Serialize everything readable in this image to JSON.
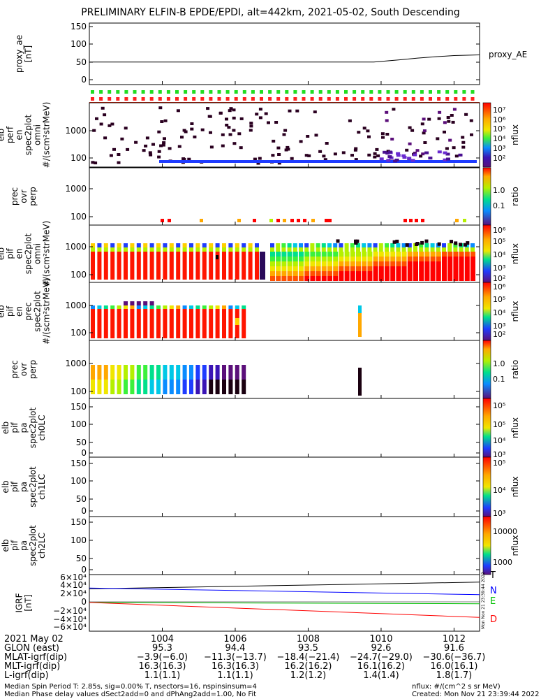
{
  "title": "PRELIMINARY ELFIN-B EPDE/EPDI, alt=442km, 2021-05-02, South Descending",
  "chart_data": [
    {
      "type": "line",
      "id": "proxy_ae",
      "ylabel": [
        "proxy_ae",
        "[nT]"
      ],
      "ylim": [
        0,
        150
      ],
      "yticks": [
        "150",
        "100",
        "50",
        "0"
      ],
      "series": [
        {
          "name": "proxy_AE",
          "x": [
            1002,
            1003,
            1004,
            1005,
            1006,
            1007,
            1008,
            1009,
            1009.8,
            1010.5,
            1011,
            1011.5,
            1012,
            1012.7
          ],
          "y": [
            50,
            50,
            50,
            50,
            50,
            50,
            50,
            50,
            50,
            56,
            61,
            65,
            68,
            70
          ]
        }
      ]
    },
    {
      "type": "heatmap",
      "id": "perp",
      "ylabel": [
        "elb",
        "perf",
        "en",
        "spec2plot",
        "omni",
        "#/(scm²strMeV)"
      ],
      "yticks": [
        "1000",
        "100"
      ],
      "zlabel": "nflux",
      "zticks": [
        "10⁷",
        "10⁶",
        "10⁵",
        "10⁴",
        "10³",
        "10²"
      ]
    },
    {
      "type": "heatmap",
      "id": "prec_ovr_perp_1",
      "ylabel": [
        "prec",
        "ovr",
        "perp"
      ],
      "yticks": [
        "1000",
        "100"
      ],
      "zlabel": "ratio",
      "zticks": [
        "1.0",
        "0.1"
      ]
    },
    {
      "type": "heatmap",
      "id": "pif_omni",
      "ylabel": [
        "elb",
        "pif",
        "en",
        "spec2plot",
        "omni",
        "#/(scm²strMeV)"
      ],
      "yticks": [
        "1000",
        "100"
      ],
      "zlabel": "nflux",
      "zticks": [
        "10⁶",
        "10⁵",
        "10⁴",
        "10³",
        "10²"
      ]
    },
    {
      "type": "heatmap",
      "id": "pif_prec",
      "ylabel": [
        "elb",
        "pif",
        "en",
        "prec",
        "spec2plot",
        "#/(scm²strMeV)"
      ],
      "yticks": [
        "1000",
        "100"
      ],
      "zlabel": "nflux",
      "zticks": [
        "10⁶",
        "10⁵",
        "10⁴",
        "10³",
        "10²"
      ]
    },
    {
      "type": "heatmap",
      "id": "prec_ovr_perp_2",
      "ylabel": [
        "prec",
        "ovr",
        "perp"
      ],
      "yticks": [
        "1000",
        "100"
      ],
      "zlabel": "ratio",
      "zticks": [
        "1.0",
        "0.1"
      ]
    },
    {
      "type": "heatmap",
      "id": "pa_ch0",
      "ylabel": [
        "elb",
        "pif",
        "pa",
        "spec2plot",
        "ch0LC"
      ],
      "yticks": [
        "150",
        "100",
        "50",
        "0"
      ],
      "zlabel": "nflux",
      "zticks": [
        "10⁵",
        "10⁵",
        "10⁴",
        "10³"
      ]
    },
    {
      "type": "heatmap",
      "id": "pa_ch1",
      "ylabel": [
        "elb",
        "pif",
        "pa",
        "spec2plot",
        "ch1LC"
      ],
      "yticks": [
        "150",
        "100",
        "50",
        "0"
      ],
      "zlabel": "nflux",
      "zticks": [
        "10⁵",
        "10⁴",
        "10³"
      ]
    },
    {
      "type": "heatmap",
      "id": "pa_ch2",
      "ylabel": [
        "elb",
        "pif",
        "pa",
        "spec2plot",
        "ch2LC"
      ],
      "yticks": [
        "150",
        "100",
        "50",
        "0"
      ],
      "zlabel": "nflux",
      "zticks": [
        "10000",
        "1000"
      ]
    },
    {
      "type": "line",
      "id": "igrf",
      "ylabel": [
        "IGRF",
        "[nT]"
      ],
      "ylim": [
        -60000,
        60000
      ],
      "yticks": [
        "6×10⁴",
        "4×10⁴",
        "2×10⁴",
        "0",
        "−2×10⁴",
        "−4×10⁴",
        "−6×10⁴"
      ],
      "series": [
        {
          "name": "T",
          "color": "#000000",
          "x": [
            1002,
            1012.7
          ],
          "y": [
            31000,
            47000
          ]
        },
        {
          "name": "N",
          "color": "#0000ff",
          "x": [
            1002,
            1012.7
          ],
          "y": [
            33000,
            17000
          ]
        },
        {
          "name": "E",
          "color": "#00c000",
          "x": [
            1002,
            1012.7
          ],
          "y": [
            -1500,
            -4500
          ]
        },
        {
          "name": "D",
          "color": "#ff0000",
          "x": [
            1002,
            1012.7
          ],
          "y": [
            -1500,
            -37000
          ]
        }
      ]
    }
  ],
  "xaxis": {
    "ticks": [
      "1004",
      "1006",
      "1008",
      "1010",
      "1012"
    ],
    "range": [
      1002,
      1012.7
    ]
  },
  "footer": {
    "rows": [
      {
        "label": "2021 May 02",
        "values": [
          "1004",
          "1006",
          "1008",
          "1010",
          "1012"
        ]
      },
      {
        "label": "GLON (east)",
        "values": [
          "95.3",
          "94.4",
          "93.5",
          "92.6",
          "91.6"
        ]
      },
      {
        "label": "MLAT-igrf(dip)",
        "values": [
          "−3.9(−6.0)",
          "−11.3(−13.7)",
          "−18.4(−21.4)",
          "−24.7(−29.0)",
          "−30.6(−36.7)"
        ]
      },
      {
        "label": "MLT-igrf(dip)",
        "values": [
          "16.3(16.3)",
          "16.3(16.3)",
          "16.2(16.2)",
          "16.1(16.2)",
          "16.0(16.1)"
        ]
      },
      {
        "label": "L-igrf(dip)",
        "values": [
          "1.1(1.1)",
          "1.1(1.1)",
          "1.2(1.2)",
          "1.4(1.4)",
          "1.8(1.7)"
        ]
      }
    ],
    "note1": "Median Spin Period T: 2.85s, sig=0.00% T, nsectors=16, nspinsinsum=4",
    "note2": "Median Phase delay values dSect2add=0 and dPhAng2add=1.00, No Fit",
    "units": "nflux: #/(cm^2 s sr MeV)",
    "created": "Created: Mon Nov 21 23:39:44 2022",
    "side_stamp": "Mon Nov 21 23:39:44 2022"
  }
}
